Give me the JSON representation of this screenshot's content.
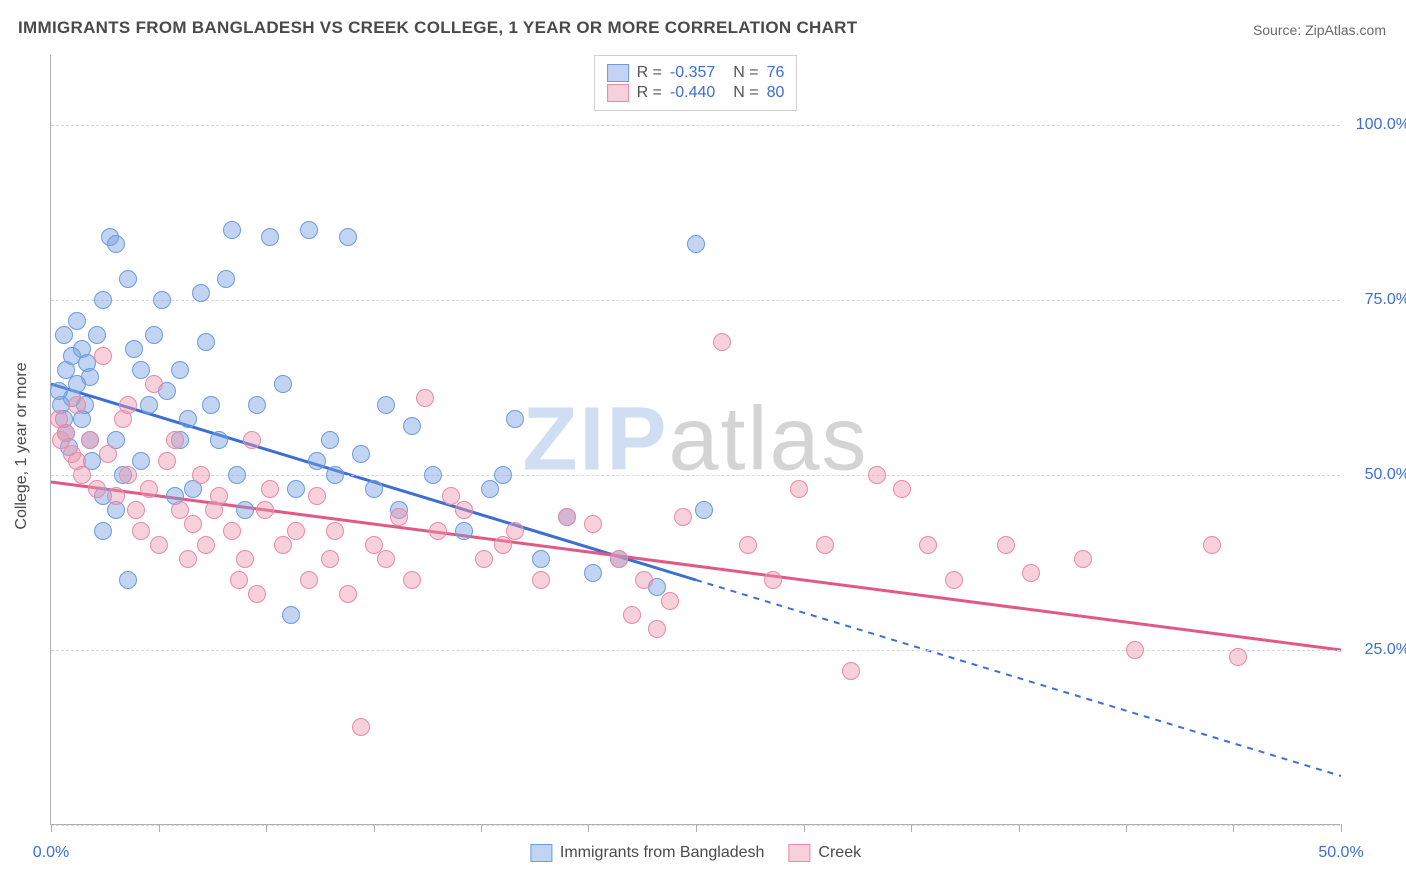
{
  "title": "IMMIGRANTS FROM BANGLADESH VS CREEK COLLEGE, 1 YEAR OR MORE CORRELATION CHART",
  "source_label": "Source: ",
  "source_name": "ZipAtlas.com",
  "y_axis_label": "College, 1 year or more",
  "watermark": {
    "zip": "ZIP",
    "atlas": "atlas"
  },
  "chart": {
    "type": "scatter",
    "background_color": "#ffffff",
    "grid_color": "#d8d8d8",
    "axis_color": "#b0b0b0",
    "label_color": "#3b6fd4",
    "title_fontsize": 17,
    "label_fontsize": 16,
    "point_radius": 9,
    "xlim": [
      0,
      50
    ],
    "ylim": [
      0,
      110
    ],
    "x_ticks": [
      0,
      4.17,
      8.33,
      12.5,
      16.67,
      20.83,
      25,
      29.17,
      33.33,
      37.5,
      41.67,
      45.83,
      50
    ],
    "x_tick_labels": {
      "0": "0.0%",
      "50": "50.0%"
    },
    "y_gridlines": [
      0,
      25,
      50,
      75,
      100
    ],
    "y_tick_labels": {
      "25": "25.0%",
      "50": "50.0%",
      "75": "75.0%",
      "100": "100.0%"
    },
    "series": [
      {
        "name": "Immigrants from Bangladesh",
        "fill_color": "rgba(120,160,225,0.45)",
        "stroke_color": "#6a9de0",
        "line_color": "#3b6fd4",
        "R": "-0.357",
        "N": "76",
        "regression": {
          "x1": 0,
          "y1": 63,
          "x2": 25,
          "y2": 35,
          "extend_x2": 50,
          "extend_y2": 7,
          "solid_until_x": 25
        },
        "points": [
          [
            0.5,
            70
          ],
          [
            0.6,
            65
          ],
          [
            0.8,
            67
          ],
          [
            0.8,
            61
          ],
          [
            1,
            72
          ],
          [
            1,
            63
          ],
          [
            1.2,
            68
          ],
          [
            1.2,
            58
          ],
          [
            1.3,
            60
          ],
          [
            1.4,
            66
          ],
          [
            1.5,
            64
          ],
          [
            1.5,
            55
          ],
          [
            0.5,
            58
          ],
          [
            0.4,
            60
          ],
          [
            0.6,
            56
          ],
          [
            0.3,
            62
          ],
          [
            0.7,
            54
          ],
          [
            1.8,
            70
          ],
          [
            2,
            75
          ],
          [
            2.3,
            84
          ],
          [
            2.5,
            83
          ],
          [
            3,
            78
          ],
          [
            3.2,
            68
          ],
          [
            3.5,
            65
          ],
          [
            3.8,
            60
          ],
          [
            3.5,
            52
          ],
          [
            2.5,
            55
          ],
          [
            2.8,
            50
          ],
          [
            2,
            47
          ],
          [
            2,
            42
          ],
          [
            2.5,
            45
          ],
          [
            4,
            70
          ],
          [
            4.3,
            75
          ],
          [
            4.5,
            62
          ],
          [
            5,
            65
          ],
          [
            5,
            55
          ],
          [
            5.3,
            58
          ],
          [
            5.5,
            48
          ],
          [
            5.8,
            76
          ],
          [
            6,
            69
          ],
          [
            6.2,
            60
          ],
          [
            6.5,
            55
          ],
          [
            7,
            85
          ],
          [
            7.2,
            50
          ],
          [
            7.5,
            45
          ],
          [
            8,
            60
          ],
          [
            8.5,
            84
          ],
          [
            9,
            63
          ],
          [
            9.3,
            30
          ],
          [
            9.5,
            48
          ],
          [
            10,
            85
          ],
          [
            10.3,
            52
          ],
          [
            10.8,
            55
          ],
          [
            11,
            50
          ],
          [
            11.5,
            84
          ],
          [
            12,
            53
          ],
          [
            12.5,
            48
          ],
          [
            13,
            60
          ],
          [
            13.5,
            45
          ],
          [
            14,
            57
          ],
          [
            14.8,
            50
          ],
          [
            16,
            42
          ],
          [
            17,
            48
          ],
          [
            17.5,
            50
          ],
          [
            18,
            58
          ],
          [
            19,
            38
          ],
          [
            20,
            44
          ],
          [
            21,
            36
          ],
          [
            22,
            38
          ],
          [
            23.5,
            34
          ],
          [
            25,
            83
          ],
          [
            25.3,
            45
          ],
          [
            4.8,
            47
          ],
          [
            3,
            35
          ],
          [
            6.8,
            78
          ],
          [
            1.6,
            52
          ]
        ]
      },
      {
        "name": "Creek",
        "fill_color": "rgba(235,150,175,0.45)",
        "stroke_color": "#e88aa8",
        "line_color": "#e05a85",
        "R": "-0.440",
        "N": "80",
        "regression": {
          "x1": 0,
          "y1": 49,
          "x2": 50,
          "y2": 25,
          "solid_until_x": 50
        },
        "points": [
          [
            0.3,
            58
          ],
          [
            0.4,
            55
          ],
          [
            0.6,
            56
          ],
          [
            0.8,
            53
          ],
          [
            1,
            60
          ],
          [
            1,
            52
          ],
          [
            1.2,
            50
          ],
          [
            1.5,
            55
          ],
          [
            1.8,
            48
          ],
          [
            2,
            67
          ],
          [
            2.2,
            53
          ],
          [
            2.5,
            47
          ],
          [
            2.8,
            58
          ],
          [
            3,
            50
          ],
          [
            3.3,
            45
          ],
          [
            3.5,
            42
          ],
          [
            3.8,
            48
          ],
          [
            4,
            63
          ],
          [
            4.2,
            40
          ],
          [
            4.5,
            52
          ],
          [
            4.8,
            55
          ],
          [
            5,
            45
          ],
          [
            5.3,
            38
          ],
          [
            5.5,
            43
          ],
          [
            5.8,
            50
          ],
          [
            6,
            40
          ],
          [
            6.3,
            45
          ],
          [
            6.5,
            47
          ],
          [
            7,
            42
          ],
          [
            7.3,
            35
          ],
          [
            7.5,
            38
          ],
          [
            8,
            33
          ],
          [
            8.3,
            45
          ],
          [
            8.5,
            48
          ],
          [
            9,
            40
          ],
          [
            9.5,
            42
          ],
          [
            10,
            35
          ],
          [
            10.3,
            47
          ],
          [
            11,
            42
          ],
          [
            11.5,
            33
          ],
          [
            12,
            14
          ],
          [
            12.5,
            40
          ],
          [
            13,
            38
          ],
          [
            13.5,
            44
          ],
          [
            14,
            35
          ],
          [
            14.5,
            61
          ],
          [
            15,
            42
          ],
          [
            15.5,
            47
          ],
          [
            16,
            45
          ],
          [
            16.8,
            38
          ],
          [
            17.5,
            40
          ],
          [
            18,
            42
          ],
          [
            19,
            35
          ],
          [
            20,
            44
          ],
          [
            21,
            43
          ],
          [
            22,
            38
          ],
          [
            22.5,
            30
          ],
          [
            23,
            35
          ],
          [
            23.5,
            28
          ],
          [
            24,
            32
          ],
          [
            24.5,
            44
          ],
          [
            26,
            69
          ],
          [
            27,
            40
          ],
          [
            28,
            35
          ],
          [
            29,
            48
          ],
          [
            30,
            40
          ],
          [
            31,
            22
          ],
          [
            32,
            50
          ],
          [
            33,
            48
          ],
          [
            34,
            40
          ],
          [
            35,
            35
          ],
          [
            37,
            40
          ],
          [
            38,
            36
          ],
          [
            40,
            38
          ],
          [
            42,
            25
          ],
          [
            45,
            40
          ],
          [
            46,
            24
          ],
          [
            10.8,
            38
          ],
          [
            7.8,
            55
          ],
          [
            3,
            60
          ]
        ]
      }
    ]
  },
  "legend_bottom": [
    {
      "label": "Immigrants from Bangladesh",
      "series": 0
    },
    {
      "label": "Creek",
      "series": 1
    }
  ]
}
